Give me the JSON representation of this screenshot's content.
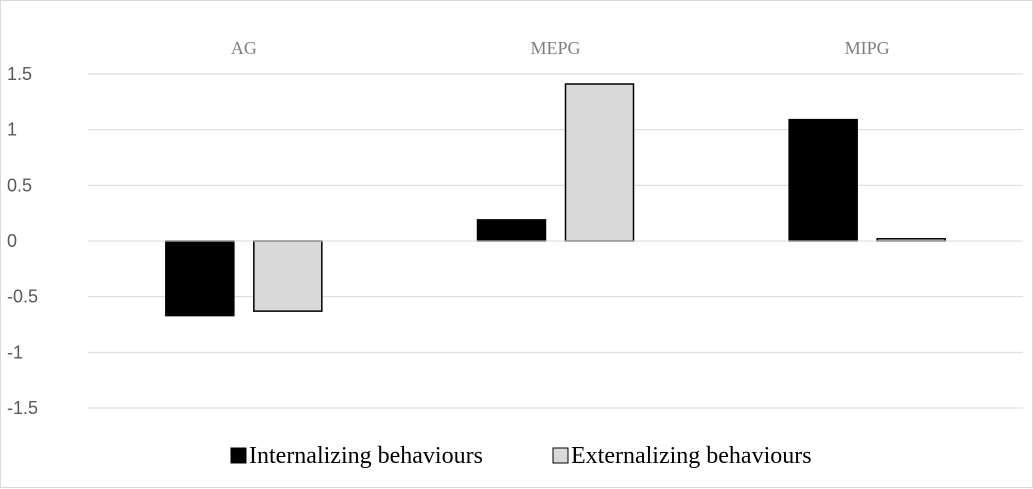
{
  "chart_data": {
    "type": "bar",
    "categories": [
      "AG",
      "MEPG",
      "MIPG"
    ],
    "series": [
      {
        "name": "Internalizing behaviours",
        "values": [
          -0.67,
          0.19,
          1.09
        ],
        "color": "#000000"
      },
      {
        "name": "Externalizing behaviours",
        "values": [
          -0.63,
          1.41,
          0.02
        ],
        "color": "#d9d9d9"
      }
    ],
    "yticks": [
      "1.5",
      "1",
      "0.5",
      "0",
      "-0.5",
      "-1",
      "-1.5"
    ],
    "ylim": [
      -1.5,
      1.5
    ],
    "grid": true,
    "category_labels_position": "top",
    "legend_position": "bottom"
  }
}
